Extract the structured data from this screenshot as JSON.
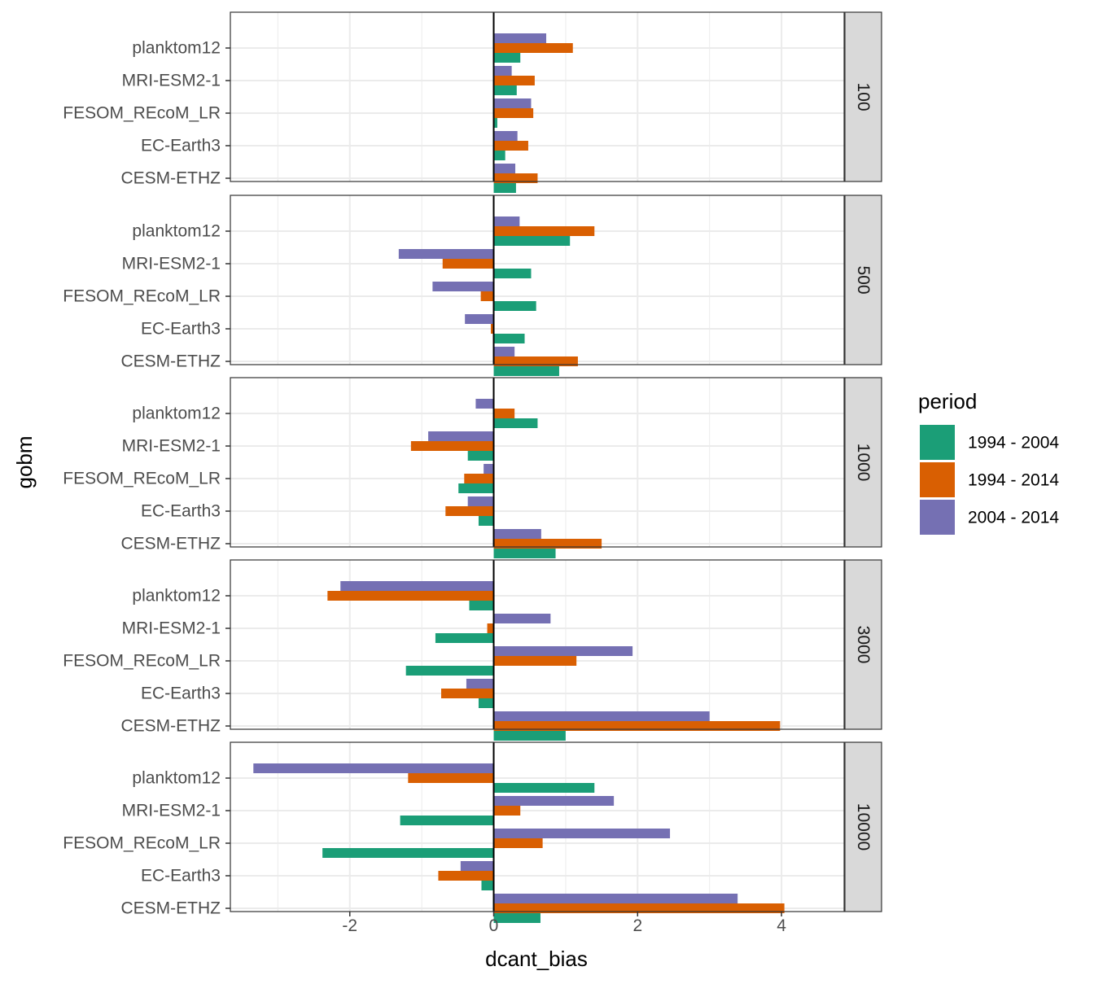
{
  "chart_data": {
    "type": "bar",
    "orientation": "horizontal",
    "xlabel": "dcant_bias",
    "ylabel": "gobm",
    "xlim": [
      -3.66,
      4.87
    ],
    "x_ticks": [
      -2,
      0,
      2,
      4
    ],
    "x_tick_labels": [
      "-2",
      "0",
      "2",
      "4"
    ],
    "grid": true,
    "legend_title": "period",
    "legend_position": "right",
    "categories": [
      "planktom12",
      "MRI-ESM2-1",
      "FESOM_REcoM_LR",
      "EC-Earth3",
      "CESM-ETHZ"
    ],
    "series": [
      {
        "name": "1994 - 2004",
        "color": "#1B9E77"
      },
      {
        "name": "1994 - 2014",
        "color": "#D95F02"
      },
      {
        "name": "2004 - 2014",
        "color": "#7570B3"
      }
    ],
    "facets": [
      {
        "label": "100",
        "values": {
          "1994 - 2004": [
            0.37,
            0.32,
            0.05,
            0.16,
            0.31
          ],
          "1994 - 2014": [
            1.1,
            0.57,
            0.55,
            0.48,
            0.61
          ],
          "2004 - 2014": [
            0.73,
            0.25,
            0.52,
            0.33,
            0.3
          ]
        }
      },
      {
        "label": "500",
        "values": {
          "1994 - 2004": [
            1.06,
            0.52,
            0.59,
            0.43,
            0.91
          ],
          "1994 - 2014": [
            1.4,
            -0.71,
            -0.18,
            -0.04,
            1.17
          ],
          "2004 - 2014": [
            0.36,
            -1.32,
            -0.85,
            -0.4,
            0.29
          ]
        }
      },
      {
        "label": "1000",
        "values": {
          "1994 - 2004": [
            0.61,
            -0.36,
            -0.49,
            -0.21,
            0.86
          ],
          "1994 - 2014": [
            0.29,
            -1.15,
            -0.41,
            -0.67,
            1.5
          ],
          "2004 - 2014": [
            -0.25,
            -0.91,
            -0.14,
            -0.36,
            0.66
          ]
        }
      },
      {
        "label": "3000",
        "values": {
          "1994 - 2004": [
            -0.34,
            -0.81,
            -1.22,
            -0.21,
            1.0
          ],
          "1994 - 2014": [
            -2.31,
            -0.09,
            1.15,
            -0.73,
            3.98
          ],
          "2004 - 2014": [
            -2.13,
            0.79,
            1.93,
            -0.38,
            3.0
          ]
        }
      },
      {
        "label": "10000",
        "values": {
          "1994 - 2004": [
            1.4,
            -1.3,
            -2.38,
            -0.17,
            0.65
          ],
          "1994 - 2014": [
            -1.19,
            0.37,
            0.68,
            -0.77,
            4.04
          ],
          "2004 - 2014": [
            -3.34,
            1.67,
            2.45,
            -0.46,
            3.39
          ]
        }
      }
    ]
  }
}
